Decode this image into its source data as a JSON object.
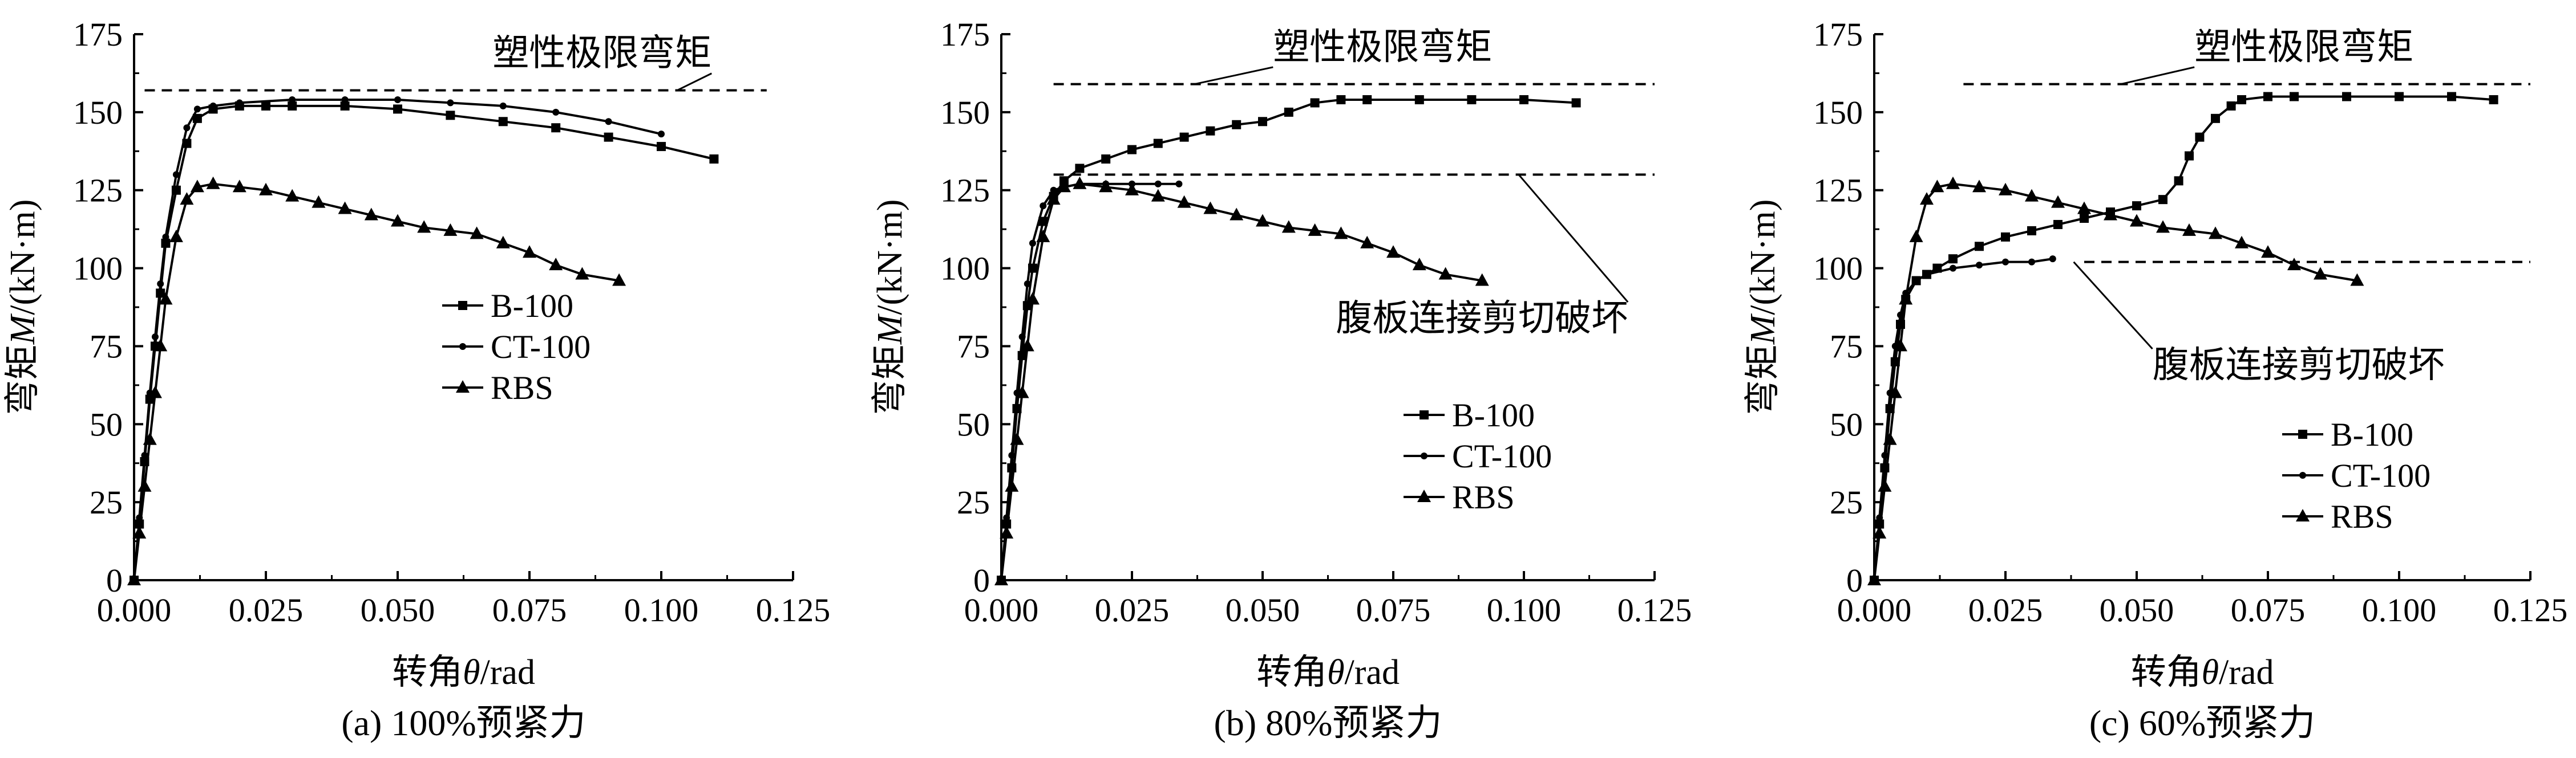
{
  "chart_data": [
    {
      "type": "line",
      "caption": "(a) 100%预紧力",
      "xlabel_prefix": "转角",
      "xlabel_symbol": "θ",
      "xlabel_unit": "/rad",
      "ylabel_prefix": "弯矩",
      "ylabel_symbol": "M",
      "ylabel_unit": "/(kN·m)",
      "xlim": [
        0,
        0.125
      ],
      "ylim": [
        0,
        175
      ],
      "xticks": [
        "0.000",
        "0.025",
        "0.050",
        "0.075",
        "0.100",
        "0.125"
      ],
      "yticks": [
        "0",
        "25",
        "50",
        "75",
        "100",
        "125",
        "150",
        "175"
      ],
      "reference_lines": [
        {
          "label": "塑性极限弯矩",
          "y": 157,
          "x_range": [
            0.002,
            0.12
          ],
          "label_x": 0.068,
          "label_y": 165,
          "leader_to": [
            0.103,
            157
          ]
        }
      ],
      "legend_position": "center-right",
      "series": [
        {
          "name": "B-100",
          "marker": "square",
          "x": [
            0,
            0.001,
            0.002,
            0.003,
            0.004,
            0.005,
            0.006,
            0.008,
            0.01,
            0.012,
            0.015,
            0.02,
            0.025,
            0.03,
            0.04,
            0.05,
            0.06,
            0.07,
            0.08,
            0.09,
            0.1,
            0.11
          ],
          "y": [
            0,
            18,
            38,
            58,
            75,
            92,
            108,
            125,
            140,
            148,
            151,
            152,
            152,
            152,
            152,
            151,
            149,
            147,
            145,
            142,
            139,
            135
          ]
        },
        {
          "name": "CT-100",
          "marker": "dot",
          "x": [
            0,
            0.001,
            0.002,
            0.003,
            0.004,
            0.005,
            0.006,
            0.008,
            0.01,
            0.012,
            0.015,
            0.02,
            0.03,
            0.04,
            0.05,
            0.06,
            0.07,
            0.08,
            0.09,
            0.1
          ],
          "y": [
            0,
            20,
            40,
            60,
            78,
            95,
            110,
            130,
            145,
            151,
            152,
            153,
            154,
            154,
            154,
            153,
            152,
            150,
            147,
            143
          ]
        },
        {
          "name": "RBS",
          "marker": "triangle",
          "x": [
            0,
            0.001,
            0.002,
            0.003,
            0.004,
            0.005,
            0.006,
            0.008,
            0.01,
            0.012,
            0.015,
            0.02,
            0.025,
            0.03,
            0.035,
            0.04,
            0.045,
            0.05,
            0.055,
            0.06,
            0.065,
            0.07,
            0.075,
            0.08,
            0.085,
            0.092
          ],
          "y": [
            0,
            15,
            30,
            45,
            60,
            75,
            90,
            110,
            122,
            126,
            127,
            126,
            125,
            123,
            121,
            119,
            117,
            115,
            113,
            112,
            111,
            108,
            105,
            101,
            98,
            96
          ]
        }
      ]
    },
    {
      "type": "line",
      "caption": "(b) 80%预紧力",
      "xlabel_prefix": "转角",
      "xlabel_symbol": "θ",
      "xlabel_unit": "/rad",
      "ylabel_prefix": "弯矩",
      "ylabel_symbol": "M",
      "ylabel_unit": "/(kN·m)",
      "xlim": [
        0,
        0.125
      ],
      "ylim": [
        0,
        175
      ],
      "xticks": [
        "0.000",
        "0.025",
        "0.050",
        "0.075",
        "0.100",
        "0.125"
      ],
      "yticks": [
        "0",
        "25",
        "50",
        "75",
        "100",
        "125",
        "150",
        "175"
      ],
      "reference_lines": [
        {
          "label": "塑性极限弯矩",
          "y": 159,
          "x_range": [
            0.01,
            0.125
          ],
          "label_x": 0.052,
          "label_y": 167,
          "leader_to": [
            0.037,
            159
          ]
        },
        {
          "label": "腹板连接剪切破坏",
          "y": 130,
          "x_range": [
            0.01,
            0.125
          ],
          "label_x": 0.064,
          "label_y": 80,
          "leader_to": [
            0.099,
            130
          ]
        }
      ],
      "legend_position": "lower-right",
      "series": [
        {
          "name": "B-100",
          "marker": "square",
          "x": [
            0,
            0.001,
            0.002,
            0.003,
            0.004,
            0.005,
            0.006,
            0.008,
            0.01,
            0.012,
            0.015,
            0.02,
            0.025,
            0.03,
            0.035,
            0.04,
            0.045,
            0.05,
            0.055,
            0.06,
            0.065,
            0.07,
            0.08,
            0.09,
            0.1,
            0.11
          ],
          "y": [
            0,
            18,
            36,
            55,
            72,
            88,
            100,
            115,
            123,
            128,
            132,
            135,
            138,
            140,
            142,
            144,
            146,
            147,
            150,
            153,
            154,
            154,
            154,
            154,
            154,
            153
          ]
        },
        {
          "name": "CT-100",
          "marker": "dot",
          "x": [
            0,
            0.001,
            0.002,
            0.003,
            0.004,
            0.005,
            0.006,
            0.008,
            0.01,
            0.012,
            0.015,
            0.02,
            0.025,
            0.03,
            0.034
          ],
          "y": [
            0,
            20,
            40,
            60,
            78,
            95,
            108,
            120,
            125,
            126,
            127,
            127,
            127,
            127,
            127
          ]
        },
        {
          "name": "RBS",
          "marker": "triangle",
          "x": [
            0,
            0.001,
            0.002,
            0.003,
            0.004,
            0.005,
            0.006,
            0.008,
            0.01,
            0.012,
            0.015,
            0.02,
            0.025,
            0.03,
            0.035,
            0.04,
            0.045,
            0.05,
            0.055,
            0.06,
            0.065,
            0.07,
            0.075,
            0.08,
            0.085,
            0.092
          ],
          "y": [
            0,
            15,
            30,
            45,
            60,
            75,
            90,
            110,
            122,
            126,
            127,
            126,
            125,
            123,
            121,
            119,
            117,
            115,
            113,
            112,
            111,
            108,
            105,
            101,
            98,
            96
          ]
        }
      ]
    },
    {
      "type": "line",
      "caption": "(c) 60%预紧力",
      "xlabel_prefix": "转角",
      "xlabel_symbol": "θ",
      "xlabel_unit": "/rad",
      "ylabel_prefix": "弯矩",
      "ylabel_symbol": "M",
      "ylabel_unit": "/(kN·m)",
      "xlim": [
        0,
        0.125
      ],
      "ylim": [
        0,
        175
      ],
      "xticks": [
        "0.000",
        "0.025",
        "0.050",
        "0.075",
        "0.100",
        "0.125"
      ],
      "yticks": [
        "0",
        "25",
        "50",
        "75",
        "100",
        "125",
        "150",
        "175"
      ],
      "reference_lines": [
        {
          "label": "塑性极限弯矩",
          "y": 159,
          "x_range": [
            0.017,
            0.125
          ],
          "label_x": 0.061,
          "label_y": 167,
          "leader_to": [
            0.047,
            159
          ]
        },
        {
          "label": "腹板连接剪切破坏",
          "y": 102,
          "x_range": [
            0.04,
            0.125
          ],
          "label_x": 0.053,
          "label_y": 65,
          "leader_to": [
            0.038,
            102
          ]
        }
      ],
      "legend_position": "lower-right",
      "series": [
        {
          "name": "B-100",
          "marker": "square",
          "x": [
            0,
            0.001,
            0.002,
            0.003,
            0.004,
            0.005,
            0.006,
            0.008,
            0.01,
            0.012,
            0.015,
            0.02,
            0.025,
            0.03,
            0.035,
            0.04,
            0.045,
            0.05,
            0.055,
            0.058,
            0.06,
            0.062,
            0.065,
            0.068,
            0.07,
            0.075,
            0.08,
            0.09,
            0.1,
            0.11,
            0.118
          ],
          "y": [
            0,
            18,
            36,
            55,
            70,
            82,
            90,
            96,
            98,
            100,
            103,
            107,
            110,
            112,
            114,
            116,
            118,
            120,
            122,
            128,
            136,
            142,
            148,
            152,
            154,
            155,
            155,
            155,
            155,
            155,
            154
          ]
        },
        {
          "name": "CT-100",
          "marker": "dot",
          "x": [
            0,
            0.001,
            0.002,
            0.003,
            0.004,
            0.005,
            0.006,
            0.008,
            0.01,
            0.015,
            0.02,
            0.025,
            0.03,
            0.034
          ],
          "y": [
            0,
            20,
            40,
            60,
            75,
            85,
            92,
            96,
            98,
            100,
            101,
            102,
            102,
            103
          ]
        },
        {
          "name": "RBS",
          "marker": "triangle",
          "x": [
            0,
            0.001,
            0.002,
            0.003,
            0.004,
            0.005,
            0.006,
            0.008,
            0.01,
            0.012,
            0.015,
            0.02,
            0.025,
            0.03,
            0.035,
            0.04,
            0.045,
            0.05,
            0.055,
            0.06,
            0.065,
            0.07,
            0.075,
            0.08,
            0.085,
            0.092
          ],
          "y": [
            0,
            15,
            30,
            45,
            60,
            75,
            90,
            110,
            122,
            126,
            127,
            126,
            125,
            123,
            121,
            119,
            117,
            115,
            113,
            112,
            111,
            108,
            105,
            101,
            98,
            96
          ]
        }
      ]
    }
  ]
}
